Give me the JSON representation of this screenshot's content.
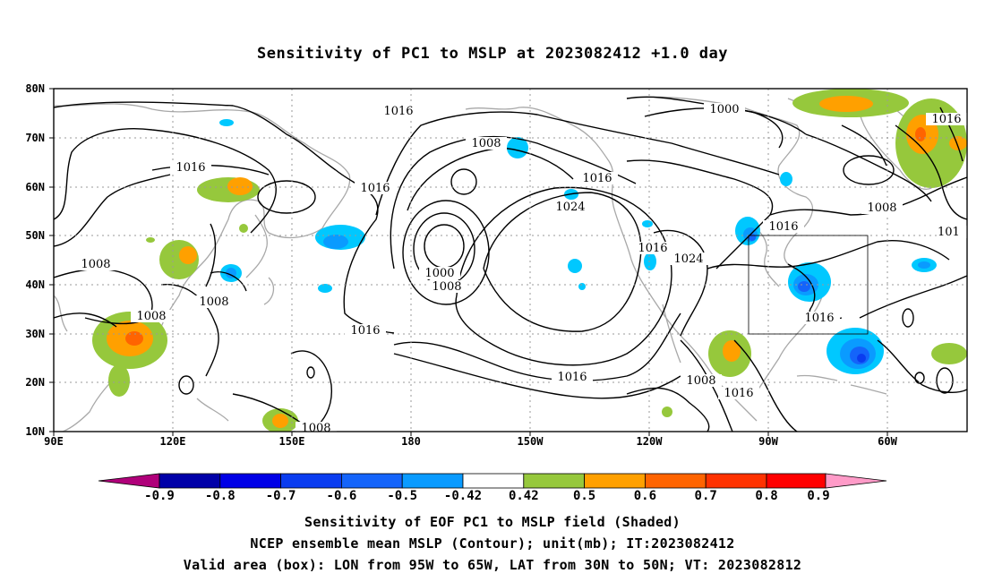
{
  "title": "Sensitivity of PC1 to MSLP at 2023082412 +1.0 day",
  "map": {
    "lat_labels": [
      "80N",
      "70N",
      "60N",
      "50N",
      "40N",
      "30N",
      "20N",
      "10N"
    ],
    "lon_labels": [
      "90E",
      "120E",
      "150E",
      "180",
      "150W",
      "120W",
      "90W",
      "60W"
    ],
    "contour_labels": [
      "1016",
      "1016",
      "1016",
      "1016",
      "1016",
      "1016",
      "1016",
      "1016",
      "1016",
      "1016",
      "1008",
      "1008",
      "1008",
      "1008",
      "1008",
      "1008",
      "1008",
      "1008",
      "1000",
      "1000",
      "1024",
      "1024",
      "101"
    ],
    "valid_box": {
      "lon_from": "95W",
      "lon_to": "65W",
      "lat_from": "30N",
      "lat_to": "50N"
    }
  },
  "colorbar": {
    "labels": [
      "-0.9",
      "-0.8",
      "-0.7",
      "-0.6",
      "-0.5",
      "-0.42",
      "0.42",
      "0.5",
      "0.6",
      "0.7",
      "0.8",
      "0.9"
    ],
    "colors": [
      "#b0007a",
      "#0000a8",
      "#0000e6",
      "#0a3cf0",
      "#1464fa",
      "#0a9bff",
      "#00c8ff",
      "#ffffff",
      "#96c83c",
      "#ffa000",
      "#ff6400",
      "#ff3200",
      "#ff0000",
      "#ff9bc8"
    ]
  },
  "captions": [
    "Sensitivity of EOF PC1 to MSLP field (Shaded)",
    "NCEP ensemble mean MSLP (Contour); unit(mb); IT:2023082412",
    "Valid area (box): LON from 95W to 65W, LAT from 30N to 50N; VT: 2023082812"
  ]
}
